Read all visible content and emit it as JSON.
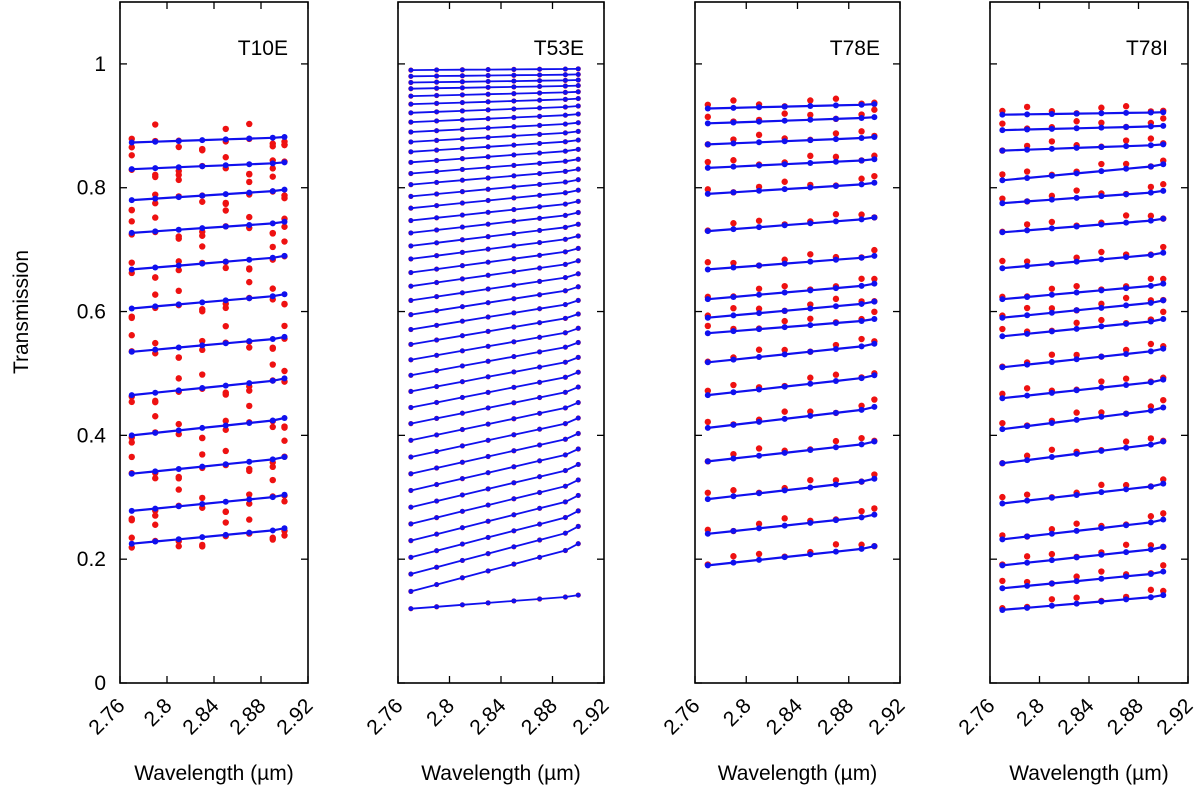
{
  "chart_data": {
    "type": "line",
    "ylabel": "Transmission",
    "xlabel": "Wavelength (µm)",
    "ylim": [
      0,
      1.1
    ],
    "xlim": [
      2.76,
      2.92
    ],
    "yticks": [
      "0",
      "0.2",
      "0.4",
      "0.6",
      "0.8",
      "1"
    ],
    "ytick_values": [
      0,
      0.2,
      0.4,
      0.6,
      0.8,
      1.0
    ],
    "xticks": [
      "2.76",
      "2.8",
      "2.84",
      "2.88",
      "2.92"
    ],
    "xtick_values": [
      2.76,
      2.8,
      2.84,
      2.88,
      2.92
    ],
    "x": [
      2.77,
      2.79,
      2.81,
      2.83,
      2.85,
      2.87,
      2.89,
      2.9
    ],
    "colors": {
      "model": "#1010ee",
      "measured": "#ee1111",
      "frame": "#000000"
    },
    "panels": [
      {
        "title": "T10E",
        "start": [
          0.873,
          0.83,
          0.78,
          0.727,
          0.668,
          0.605,
          0.535,
          0.465,
          0.4,
          0.338,
          0.278,
          0.225
        ],
        "end": [
          0.882,
          0.841,
          0.797,
          0.745,
          0.69,
          0.628,
          0.559,
          0.492,
          0.428,
          0.365,
          0.304,
          0.25
        ],
        "scatter": 0.022
      },
      {
        "title": "T53E",
        "start": [
          0.99,
          0.98,
          0.97,
          0.96,
          0.948,
          0.935,
          0.921,
          0.906,
          0.89,
          0.874,
          0.858,
          0.841,
          0.823,
          0.805,
          0.786,
          0.767,
          0.747,
          0.727,
          0.706,
          0.685,
          0.663,
          0.641,
          0.618,
          0.595,
          0.571,
          0.547,
          0.522,
          0.497,
          0.471,
          0.445,
          0.419,
          0.392,
          0.365,
          0.338,
          0.311,
          0.284,
          0.257,
          0.23,
          0.203,
          0.176,
          0.148,
          0.12
        ],
        "end": [
          0.992,
          0.983,
          0.974,
          0.965,
          0.955,
          0.944,
          0.932,
          0.919,
          0.905,
          0.891,
          0.877,
          0.862,
          0.846,
          0.83,
          0.813,
          0.796,
          0.778,
          0.76,
          0.741,
          0.722,
          0.702,
          0.682,
          0.661,
          0.64,
          0.618,
          0.596,
          0.573,
          0.55,
          0.526,
          0.502,
          0.478,
          0.453,
          0.428,
          0.403,
          0.378,
          0.353,
          0.328,
          0.303,
          0.278,
          0.253,
          0.225,
          0.142
        ],
        "scatter": 0.0
      },
      {
        "title": "T78E",
        "start": [
          0.928,
          0.904,
          0.87,
          0.832,
          0.79,
          0.73,
          0.668,
          0.62,
          0.59,
          0.565,
          0.518,
          0.465,
          0.412,
          0.358,
          0.297,
          0.241,
          0.19
        ],
        "end": [
          0.935,
          0.914,
          0.882,
          0.846,
          0.808,
          0.752,
          0.69,
          0.645,
          0.616,
          0.588,
          0.548,
          0.497,
          0.446,
          0.39,
          0.33,
          0.272,
          0.221
        ],
        "scatter": 0.006
      },
      {
        "title": "T78I",
        "start": [
          0.918,
          0.893,
          0.86,
          0.812,
          0.775,
          0.728,
          0.67,
          0.62,
          0.59,
          0.56,
          0.51,
          0.46,
          0.41,
          0.355,
          0.29,
          0.232,
          0.19,
          0.153,
          0.118
        ],
        "end": [
          0.922,
          0.9,
          0.87,
          0.838,
          0.795,
          0.75,
          0.695,
          0.645,
          0.618,
          0.588,
          0.54,
          0.49,
          0.445,
          0.39,
          0.322,
          0.264,
          0.22,
          0.18,
          0.142
        ],
        "scatter": 0.006
      }
    ]
  }
}
